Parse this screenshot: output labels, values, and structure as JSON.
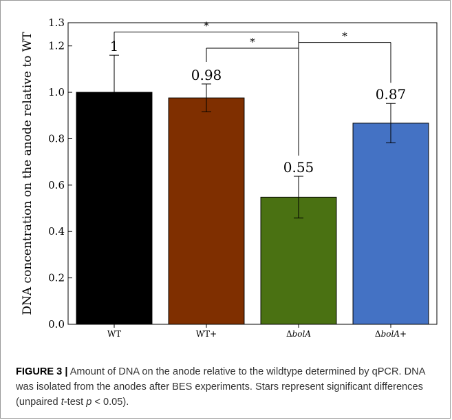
{
  "chart_data": {
    "type": "bar",
    "title": "",
    "xlabel": "",
    "ylabel": "DNA concentration on the anode relative to WT",
    "ylim": [
      0.0,
      1.3
    ],
    "yticks": [
      "0.0",
      "0.2",
      "0.4",
      "0.6",
      "0.8",
      "1.0",
      "1.2",
      "1.3"
    ],
    "grid": false,
    "legend": "none",
    "categories": [
      {
        "prefix": "",
        "italic": "",
        "suffix": "WT"
      },
      {
        "prefix": "",
        "italic": "",
        "suffix": "WT+"
      },
      {
        "prefix": "Δ",
        "italic": "bolA",
        "suffix": ""
      },
      {
        "prefix": "Δ",
        "italic": "bolA",
        "suffix": "+"
      }
    ],
    "values": [
      1.0,
      0.976,
      0.548,
      0.867
    ],
    "errors": [
      0.16,
      0.06,
      0.09,
      0.085
    ],
    "data_labels": [
      "1",
      "0.98",
      "0.55",
      "0.87"
    ],
    "colors": [
      "#000000",
      "#7f2f00",
      "#4a7112",
      "#4472c4"
    ],
    "significance": [
      {
        "from": 0,
        "to": 2,
        "y": 1.26,
        "label": "*"
      },
      {
        "from": 1,
        "to": 2,
        "y": 1.19,
        "label": "*"
      },
      {
        "from": 2,
        "to": 3,
        "y": 1.215,
        "label": "*"
      }
    ]
  },
  "caption": {
    "figure_label": "FIGURE 3 |",
    "text_1": " Amount of DNA on the anode relative to the wildtype determined by qPCR. DNA was isolated from the anodes after BES experiments. Stars represent significant differences (unpaired ",
    "t_italic": "t",
    "text_2": "-test ",
    "p_italic": "p",
    "text_3": " < 0.05)."
  }
}
